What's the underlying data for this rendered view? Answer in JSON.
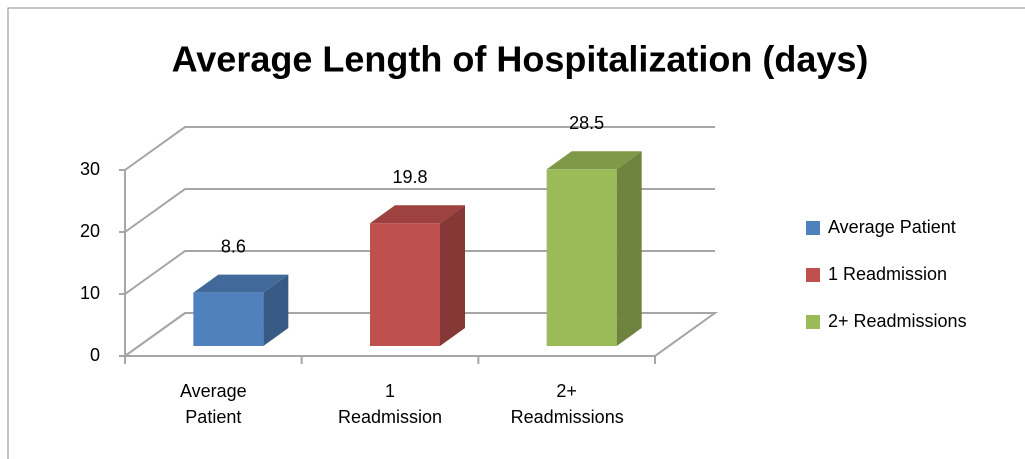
{
  "chart_data": {
    "type": "bar3d",
    "title": "Average Length of Hospitalization (days)",
    "categories": [
      "Average Patient",
      "1 Readmission",
      "2+ Readmissions"
    ],
    "values": [
      8.6,
      19.8,
      28.5
    ],
    "colors": [
      "#4f81bd",
      "#c0504d",
      "#9bbb59"
    ],
    "ylim": [
      0,
      30
    ],
    "yticks": [
      0,
      10,
      20,
      30
    ],
    "grid": true,
    "legend": "right"
  }
}
